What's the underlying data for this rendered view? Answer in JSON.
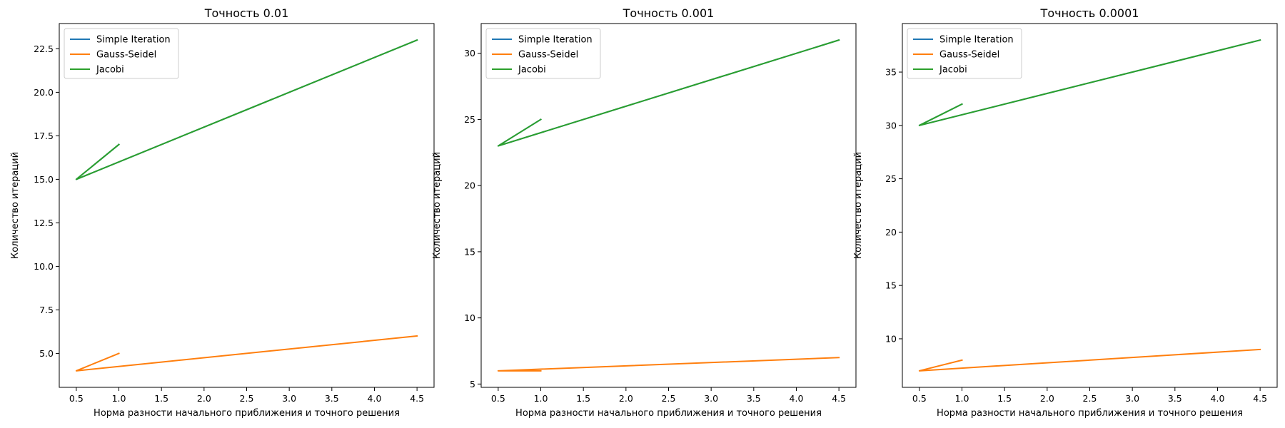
{
  "chart_data": [
    {
      "type": "line",
      "title": "Точность 0.01",
      "xlabel": "Норма разности начального приближения и точного решения",
      "ylabel": "Количество итераций",
      "x": [
        4.5,
        0.5,
        1.0
      ],
      "xlim": [
        0.3,
        4.7
      ],
      "ylim": [
        3.05,
        23.95
      ],
      "xticks": [
        "0.5",
        "1.0",
        "1.5",
        "2.0",
        "2.5",
        "3.0",
        "3.5",
        "4.0",
        "4.5"
      ],
      "yticks": [
        "5.0",
        "7.5",
        "10.0",
        "12.5",
        "15.0",
        "17.5",
        "20.0",
        "22.5"
      ],
      "legend_position": "upper-left",
      "series": [
        {
          "name": "Simple Iteration",
          "color": "#1f77b4",
          "values": [
            23,
            15,
            17
          ]
        },
        {
          "name": "Gauss-Seidel",
          "color": "#ff7f0e",
          "values": [
            6,
            4,
            5
          ]
        },
        {
          "name": "Jacobi",
          "color": "#2ca02c",
          "values": [
            23,
            15,
            17
          ]
        }
      ]
    },
    {
      "type": "line",
      "title": "Точность 0.001",
      "xlabel": "Норма разности начального приближения и точного решения",
      "ylabel": "Количество итераций",
      "x": [
        4.5,
        0.5,
        1.0
      ],
      "xlim": [
        0.3,
        4.7
      ],
      "ylim": [
        4.75,
        32.25
      ],
      "xticks": [
        "0.5",
        "1.0",
        "1.5",
        "2.0",
        "2.5",
        "3.0",
        "3.5",
        "4.0",
        "4.5"
      ],
      "yticks": [
        "5",
        "10",
        "15",
        "20",
        "25",
        "30"
      ],
      "legend_position": "upper-left",
      "series": [
        {
          "name": "Simple Iteration",
          "color": "#1f77b4",
          "values": [
            31,
            23,
            25
          ]
        },
        {
          "name": "Gauss-Seidel",
          "color": "#ff7f0e",
          "values": [
            7,
            6,
            6
          ]
        },
        {
          "name": "Jacobi",
          "color": "#2ca02c",
          "values": [
            31,
            23,
            25
          ]
        }
      ]
    },
    {
      "type": "line",
      "title": "Точность 0.0001",
      "xlabel": "Норма разности начального приближения и точного решения",
      "ylabel": "Количество итераций",
      "x": [
        4.5,
        0.5,
        1.0
      ],
      "xlim": [
        0.3,
        4.7
      ],
      "ylim": [
        5.45,
        39.55
      ],
      "xticks": [
        "0.5",
        "1.0",
        "1.5",
        "2.0",
        "2.5",
        "3.0",
        "3.5",
        "4.0",
        "4.5"
      ],
      "yticks": [
        "10",
        "15",
        "20",
        "25",
        "30",
        "35"
      ],
      "legend_position": "upper-left",
      "series": [
        {
          "name": "Simple Iteration",
          "color": "#1f77b4",
          "values": [
            38,
            30,
            32
          ]
        },
        {
          "name": "Gauss-Seidel",
          "color": "#ff7f0e",
          "values": [
            9,
            7,
            8
          ]
        },
        {
          "name": "Jacobi",
          "color": "#2ca02c",
          "values": [
            38,
            30,
            32
          ]
        }
      ]
    }
  ]
}
